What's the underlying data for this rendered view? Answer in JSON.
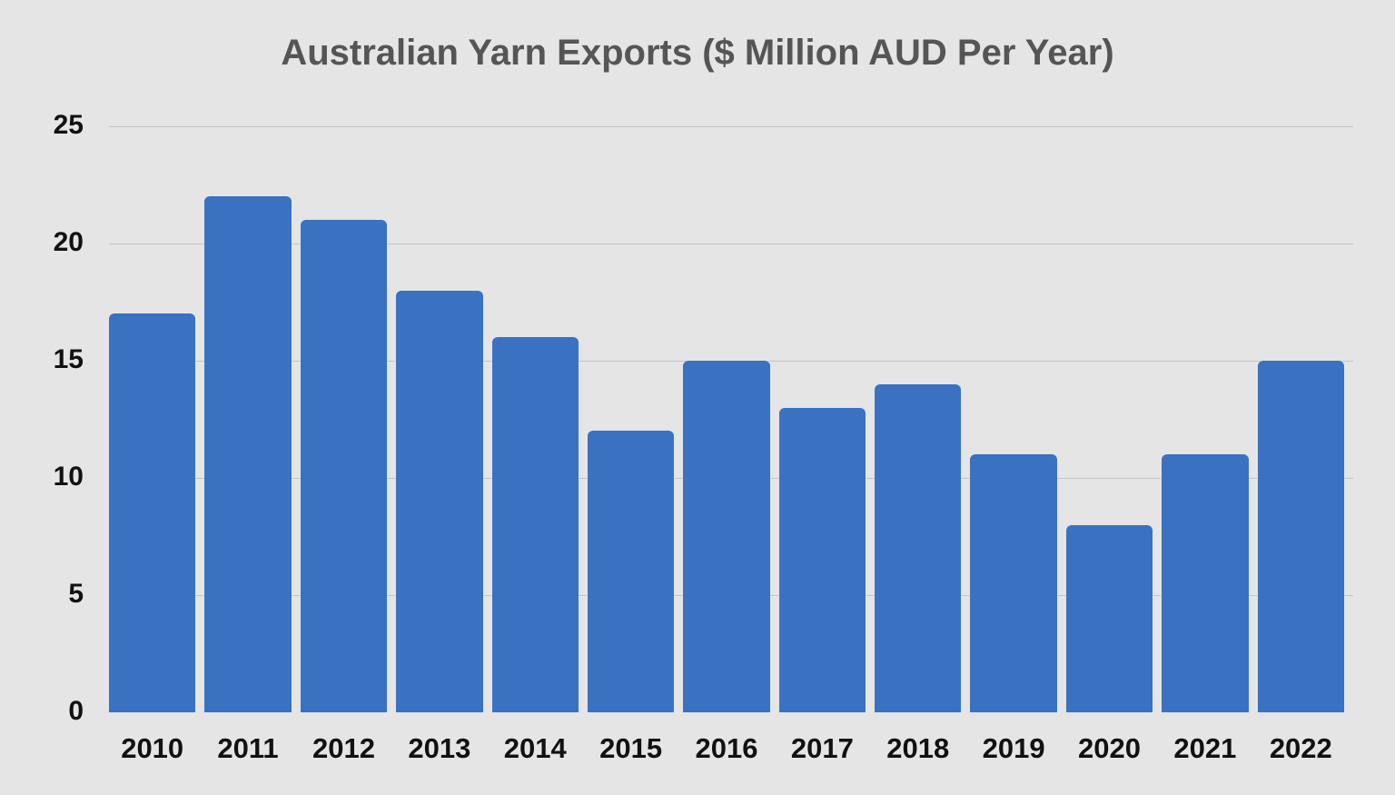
{
  "chart_data": {
    "type": "bar",
    "title": "Australian Yarn Exports ($ Million AUD Per Year)",
    "xlabel": "",
    "ylabel": "",
    "categories": [
      "2010",
      "2011",
      "2012",
      "2013",
      "2014",
      "2015",
      "2016",
      "2017",
      "2018",
      "2019",
      "2020",
      "2021",
      "2022"
    ],
    "values": [
      17,
      22,
      21,
      18,
      16,
      12,
      15,
      13,
      14,
      11,
      8,
      11,
      15
    ],
    "ylim": [
      0,
      25
    ],
    "yticks": [
      "0",
      "5",
      "10",
      "15",
      "20",
      "25"
    ],
    "grid": true,
    "legend": "none",
    "colors": {
      "bar": "#3a72c1",
      "background": "#e5e5e5",
      "gridline": "#c4c4c4",
      "title": "#555555",
      "tick_label": "#111111"
    }
  }
}
